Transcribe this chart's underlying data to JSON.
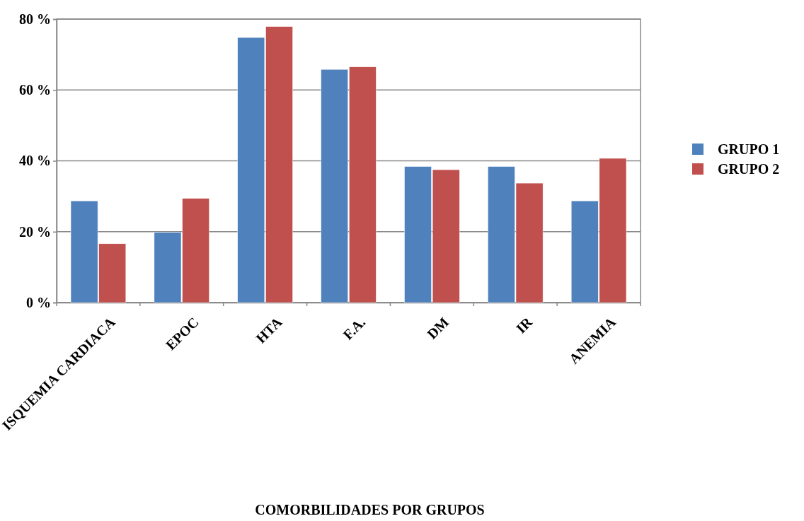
{
  "chart_data": {
    "type": "bar",
    "xlabel": "COMORBILIDADES POR GRUPOS",
    "categories": [
      "ISQUEMIA CARDIACA",
      "EPOC",
      "HTA",
      "F.A.",
      "DM",
      "IR",
      "ANEMIA"
    ],
    "series": [
      {
        "name": "GRUPO 1",
        "color": "#4f81bd",
        "values": [
          28.7,
          19.8,
          74.8,
          65.8,
          38.4,
          38.4,
          28.7
        ]
      },
      {
        "name": "GRUPO 2",
        "color": "#c0504d",
        "values": [
          16.6,
          29.4,
          77.9,
          66.5,
          37.5,
          33.7,
          40.7
        ]
      }
    ],
    "ylim": [
      0,
      80
    ],
    "yticks": [
      {
        "value": 0,
        "label": "0 %"
      },
      {
        "value": 20,
        "label": "20 %"
      },
      {
        "value": 40,
        "label": "40 %"
      },
      {
        "value": 60,
        "label": "60 %"
      },
      {
        "value": 80,
        "label": "80 %"
      }
    ],
    "grid": "y",
    "legend": "right"
  }
}
